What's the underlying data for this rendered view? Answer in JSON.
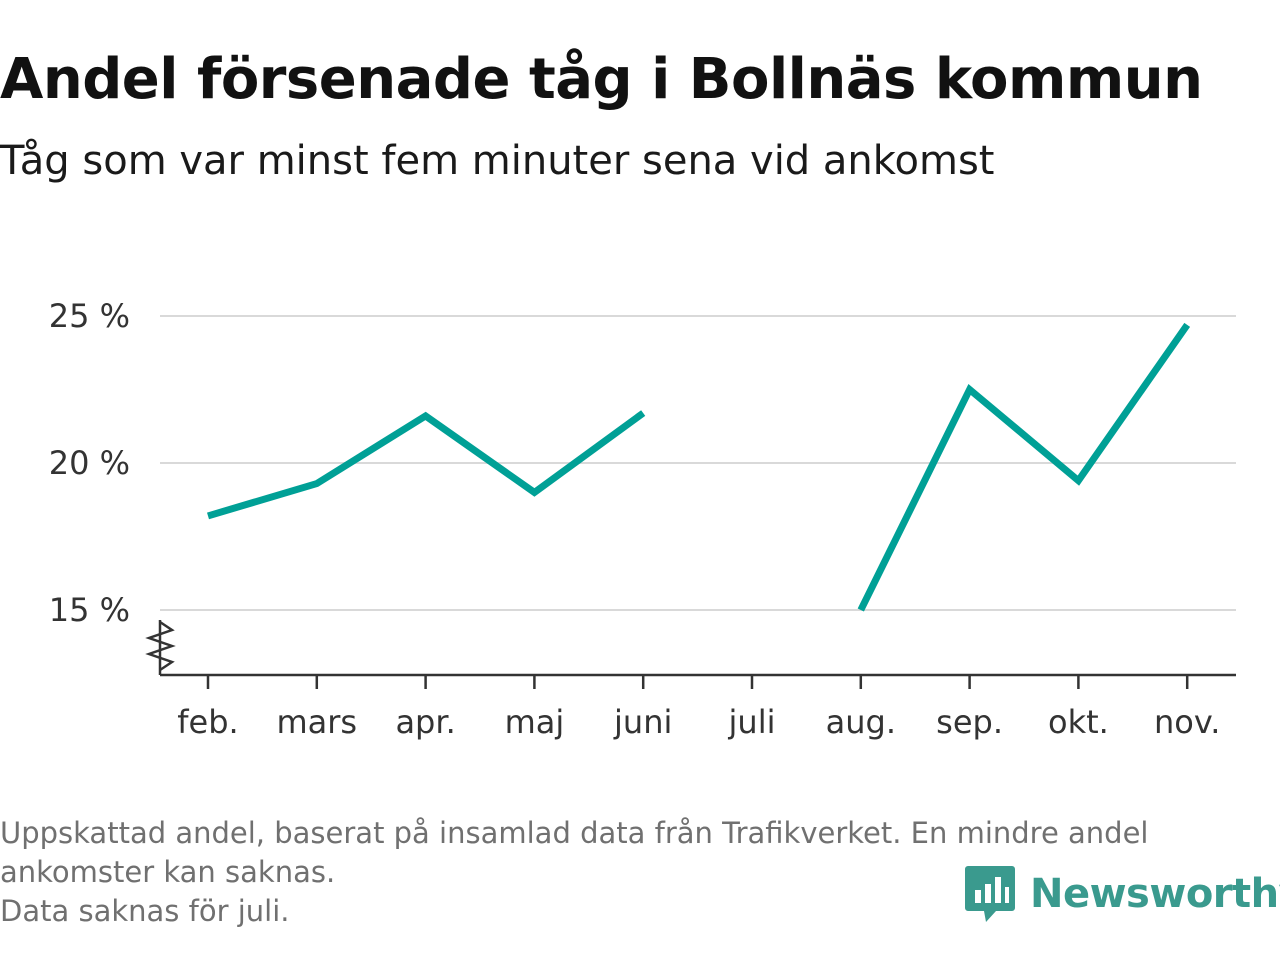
{
  "header": {
    "title": "Andel försenade tåg i Bollnäs kommun",
    "subtitle": "Tåg som var minst fem minuter sena vid ankomst"
  },
  "chart_data": {
    "type": "line",
    "title": "Andel försenade tåg i Bollnäs kommun",
    "subtitle": "Tåg som var minst fem minuter sena vid ankomst",
    "xlabel": "",
    "ylabel": "",
    "categories": [
      "feb.",
      "mars",
      "apr.",
      "maj",
      "juni",
      "juli",
      "aug.",
      "sep.",
      "okt.",
      "nov."
    ],
    "series": [
      {
        "values": [
          18.2,
          19.3,
          21.6,
          19.0,
          21.7,
          null,
          15.0,
          22.5,
          19.4,
          24.7
        ]
      }
    ],
    "ytick_values": [
      15,
      20,
      25
    ],
    "ytick_labels": [
      "15 %",
      "20 %",
      "25 %"
    ],
    "ylim": [
      12.8,
      25
    ],
    "y_axis_break": true,
    "grid": "horizontal",
    "legend": "none"
  },
  "footnote": {
    "line1": "Uppskattad andel, baserat på insamlad data från Trafikverket. En mindre andel",
    "line2": "ankomster kan saknas.",
    "line3": "Data saknas för juli."
  },
  "brand": {
    "name": "Newsworthy",
    "logo_icon": "bar-chart-speech-bubble-icon"
  },
  "colors": {
    "line": "#00a096",
    "grid": "#d9d9d9",
    "axis": "#333333",
    "brand": "#3a9a8e"
  }
}
